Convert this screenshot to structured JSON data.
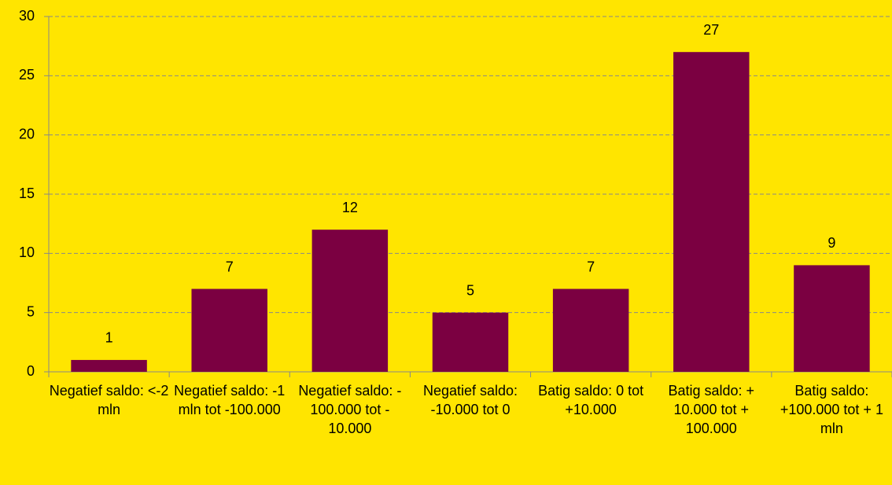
{
  "chart_data": {
    "type": "bar",
    "categories": [
      "Negatief saldo: <-2 mln",
      "Negatief saldo: -1 mln tot -100.000",
      "Negatief saldo: - 100.000 tot - 10.000",
      "Negatief saldo: -10.000 tot 0",
      "Batig saldo: 0 tot +10.000",
      "Batig saldo: + 10.000 tot + 100.000",
      "Batig saldo: +100.000 tot + 1 mln"
    ],
    "values": [
      1,
      7,
      12,
      5,
      7,
      27,
      9
    ],
    "color": "#7b0041",
    "ylim": [
      0,
      30
    ],
    "yticks": [
      0,
      5,
      10,
      15,
      20,
      25,
      30
    ],
    "grid": true
  }
}
